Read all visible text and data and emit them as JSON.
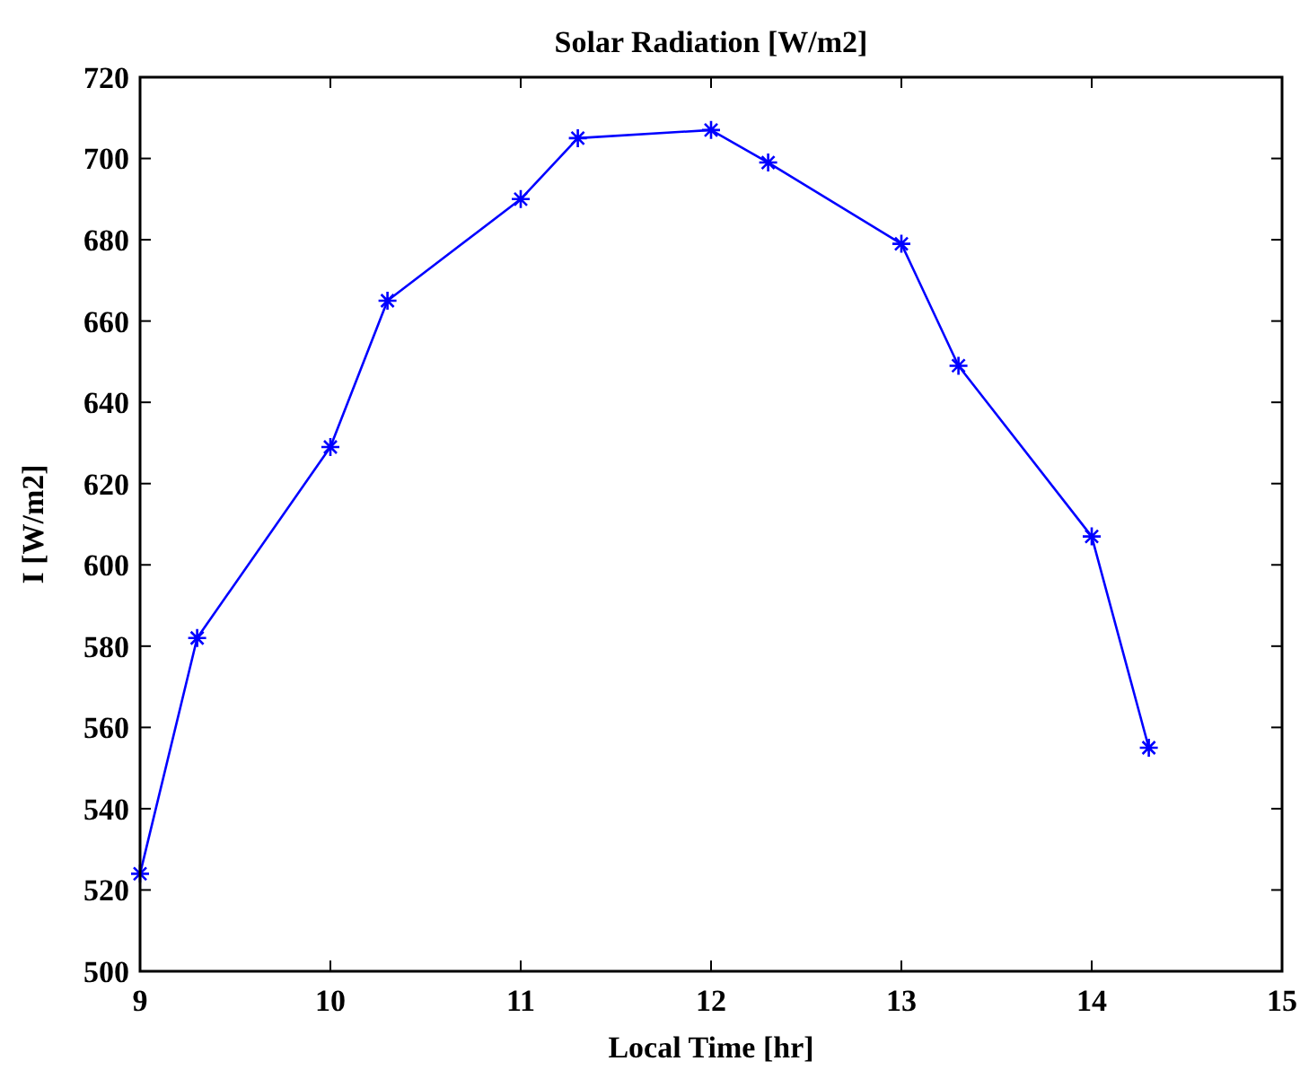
{
  "chart_data": {
    "type": "line",
    "title": "Solar Radiation [W/m2]",
    "xlabel": "Local  Time [hr]",
    "ylabel": "I  [W/m2]",
    "x": [
      9,
      9.3,
      10,
      10.3,
      11,
      11.3,
      12,
      12.3,
      13,
      13.3,
      14,
      14.3
    ],
    "series": [
      {
        "color": "#0000ff",
        "values": [
          524,
          582,
          629,
          665,
          690,
          705,
          707,
          699,
          679,
          649,
          607,
          555
        ]
      }
    ],
    "xlim": [
      9,
      15
    ],
    "xticks": [
      9,
      10,
      11,
      12,
      13,
      14,
      15
    ],
    "ylim": [
      500,
      720
    ],
    "yticks": [
      500,
      520,
      540,
      560,
      580,
      600,
      620,
      640,
      660,
      680,
      700,
      720
    ],
    "marker": "cross",
    "line_style": "solid"
  }
}
